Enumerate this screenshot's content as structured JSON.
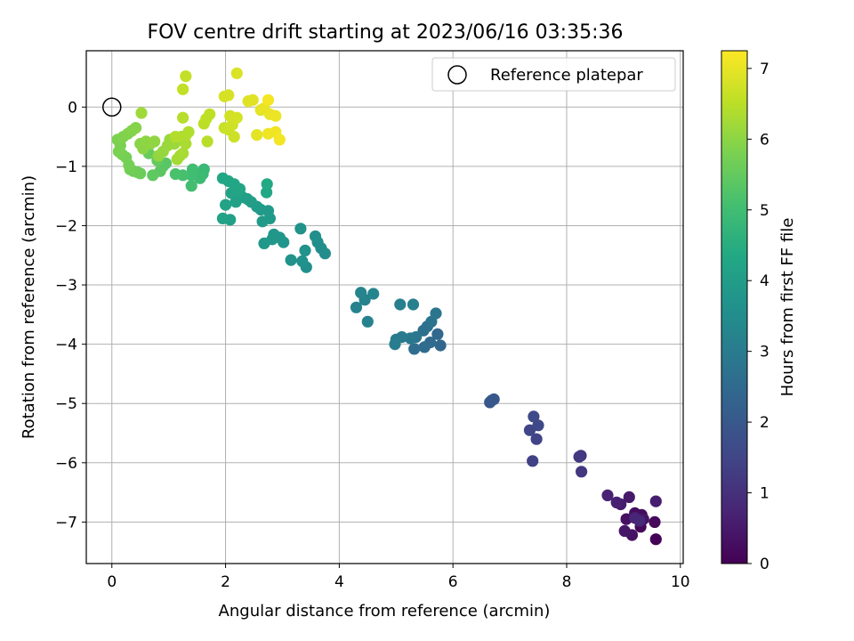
{
  "chart_data": {
    "type": "scatter",
    "title": "FOV centre drift starting at 2023/06/16 03:35:36",
    "xlabel": "Angular distance from reference (arcmin)",
    "ylabel": "Rotation from reference (arcmin)",
    "xlim": [
      -0.45,
      10.05
    ],
    "ylim": [
      -7.7,
      0.95
    ],
    "xticks": [
      0,
      2,
      4,
      6,
      8,
      10
    ],
    "xtick_labels": [
      "0",
      "2",
      "4",
      "6",
      "8",
      "10"
    ],
    "yticks": [
      0,
      -1,
      -2,
      -3,
      -4,
      -5,
      -6,
      -7
    ],
    "ytick_labels": [
      "0",
      "−1",
      "−2",
      "−3",
      "−4",
      "−5",
      "−6",
      "−7"
    ],
    "grid": true,
    "legend": {
      "position": "top-right",
      "entries": [
        "Reference platepar"
      ]
    },
    "reference_marker": {
      "x": 0,
      "y": 0
    },
    "colorbar": {
      "label": "Hours from first FF file",
      "colormap": "viridis",
      "min": 0,
      "max": 7.25,
      "ticks": [
        0,
        1,
        2,
        3,
        4,
        5,
        6,
        7
      ],
      "tick_labels": [
        "0",
        "1",
        "2",
        "3",
        "4",
        "5",
        "6",
        "7"
      ]
    },
    "points_columns": [
      "x_arcmin",
      "y_arcmin",
      "hours"
    ],
    "points": [
      [
        9.57,
        -7.29,
        0.05
      ],
      [
        9.3,
        -7.08,
        0.1
      ],
      [
        9.55,
        -7.0,
        0.15
      ],
      [
        9.32,
        -6.88,
        0.2
      ],
      [
        9.2,
        -6.85,
        0.25
      ],
      [
        9.05,
        -6.95,
        0.3
      ],
      [
        9.15,
        -7.22,
        0.35
      ],
      [
        9.35,
        -6.95,
        0.4
      ],
      [
        9.02,
        -7.15,
        0.45
      ],
      [
        9.1,
        -6.58,
        0.5
      ],
      [
        8.95,
        -6.7,
        0.55
      ],
      [
        9.57,
        -6.65,
        0.6
      ],
      [
        8.88,
        -6.67,
        0.65
      ],
      [
        8.72,
        -6.55,
        0.7
      ],
      [
        9.2,
        -6.93,
        0.75
      ],
      [
        9.28,
        -6.98,
        0.8
      ],
      [
        8.25,
        -5.88,
        1.1
      ],
      [
        8.26,
        -6.15,
        1.15
      ],
      [
        8.22,
        -5.9,
        1.2
      ],
      [
        7.4,
        -5.97,
        1.4
      ],
      [
        7.47,
        -5.6,
        1.45
      ],
      [
        7.35,
        -5.45,
        1.5
      ],
      [
        7.5,
        -5.37,
        1.55
      ],
      [
        7.42,
        -5.22,
        1.6
      ],
      [
        6.65,
        -4.98,
        1.9
      ],
      [
        6.72,
        -4.93,
        1.95
      ],
      [
        6.68,
        -4.95,
        2.0
      ],
      [
        5.78,
        -4.02,
        2.4
      ],
      [
        5.73,
        -3.83,
        2.45
      ],
      [
        5.6,
        -3.97,
        2.5
      ],
      [
        5.5,
        -4.05,
        2.55
      ],
      [
        5.32,
        -4.08,
        2.6
      ],
      [
        5.48,
        -3.77,
        2.65
      ],
      [
        5.55,
        -3.7,
        2.7
      ],
      [
        5.62,
        -3.62,
        2.75
      ],
      [
        5.7,
        -3.48,
        2.8
      ],
      [
        5.35,
        -3.88,
        2.85
      ],
      [
        5.25,
        -3.9,
        2.9
      ],
      [
        5.1,
        -3.88,
        2.95
      ],
      [
        5.0,
        -3.92,
        3.0
      ],
      [
        4.98,
        -4.0,
        3.05
      ],
      [
        5.07,
        -3.33,
        3.1
      ],
      [
        5.3,
        -3.33,
        3.12
      ],
      [
        4.5,
        -3.62,
        3.18
      ],
      [
        4.45,
        -3.25,
        3.2
      ],
      [
        4.3,
        -3.38,
        3.22
      ],
      [
        4.38,
        -3.13,
        3.25
      ],
      [
        4.6,
        -3.15,
        3.28
      ],
      [
        3.75,
        -2.47,
        3.5
      ],
      [
        3.68,
        -2.38,
        3.52
      ],
      [
        3.62,
        -2.28,
        3.55
      ],
      [
        3.58,
        -2.18,
        3.58
      ],
      [
        3.42,
        -2.7,
        3.6
      ],
      [
        3.35,
        -2.6,
        3.62
      ],
      [
        3.4,
        -2.42,
        3.65
      ],
      [
        3.32,
        -2.05,
        3.68
      ],
      [
        3.15,
        -2.58,
        3.7
      ],
      [
        3.02,
        -2.28,
        3.75
      ],
      [
        2.95,
        -2.2,
        3.78
      ],
      [
        2.82,
        -2.23,
        3.8
      ],
      [
        2.85,
        -2.15,
        3.82
      ],
      [
        2.68,
        -2.3,
        3.85
      ],
      [
        2.78,
        -1.88,
        3.88
      ],
      [
        2.75,
        -1.75,
        3.9
      ],
      [
        2.62,
        -1.73,
        3.92
      ],
      [
        2.65,
        -1.93,
        3.95
      ],
      [
        2.55,
        -1.68,
        3.98
      ],
      [
        2.45,
        -1.6,
        4.0
      ],
      [
        2.38,
        -1.55,
        4.05
      ],
      [
        2.3,
        -1.52,
        4.08
      ],
      [
        2.08,
        -1.9,
        4.1
      ],
      [
        2.18,
        -1.6,
        4.12
      ],
      [
        1.95,
        -1.88,
        4.15
      ],
      [
        2.0,
        -1.65,
        4.18
      ],
      [
        2.1,
        -1.45,
        4.2
      ],
      [
        2.2,
        -1.42,
        4.22
      ],
      [
        2.25,
        -1.38,
        4.25
      ],
      [
        2.15,
        -1.3,
        4.28
      ],
      [
        2.05,
        -1.25,
        4.3
      ],
      [
        1.95,
        -1.2,
        4.32
      ],
      [
        2.72,
        -1.44,
        4.35
      ],
      [
        2.73,
        -1.3,
        4.38
      ],
      [
        1.62,
        -1.05,
        4.85
      ],
      [
        1.6,
        -1.13,
        4.9
      ],
      [
        1.55,
        -1.2,
        4.95
      ],
      [
        1.4,
        -1.15,
        5.0
      ],
      [
        1.42,
        -1.05,
        5.02
      ],
      [
        1.4,
        -1.33,
        5.05
      ],
      [
        1.25,
        -1.15,
        5.1
      ],
      [
        1.12,
        -1.13,
        5.15
      ],
      [
        0.9,
        -1.0,
        5.3
      ],
      [
        0.95,
        -0.95,
        5.35
      ],
      [
        0.85,
        -1.08,
        5.4
      ],
      [
        0.72,
        -1.15,
        5.45
      ],
      [
        0.8,
        -0.9,
        5.5
      ],
      [
        0.65,
        -0.78,
        5.55
      ],
      [
        0.5,
        -1.12,
        5.6
      ],
      [
        0.45,
        -1.1,
        5.62
      ],
      [
        0.38,
        -1.08,
        5.65
      ],
      [
        0.32,
        -1.05,
        5.68
      ],
      [
        0.3,
        -0.98,
        5.7
      ],
      [
        0.25,
        -0.85,
        5.72
      ],
      [
        0.18,
        -0.8,
        5.75
      ],
      [
        0.12,
        -0.75,
        5.78
      ],
      [
        0.15,
        -0.65,
        5.8
      ],
      [
        0.1,
        -0.55,
        5.82
      ],
      [
        0.2,
        -0.5,
        5.85
      ],
      [
        0.28,
        -0.45,
        5.88
      ],
      [
        0.35,
        -0.4,
        5.9
      ],
      [
        0.42,
        -0.35,
        5.92
      ],
      [
        0.5,
        -0.62,
        5.95
      ],
      [
        0.55,
        -0.7,
        5.98
      ],
      [
        0.6,
        -0.58,
        6.0
      ],
      [
        0.68,
        -0.62,
        6.02
      ],
      [
        0.75,
        -0.58,
        6.05
      ],
      [
        0.82,
        -0.82,
        6.08
      ],
      [
        0.9,
        -0.75,
        6.1
      ],
      [
        0.98,
        -0.65,
        6.12
      ],
      [
        1.02,
        -0.55,
        6.15
      ],
      [
        1.1,
        -0.62,
        6.18
      ],
      [
        0.52,
        -0.1,
        6.2
      ],
      [
        1.15,
        -0.88,
        6.25
      ],
      [
        1.2,
        -0.82,
        6.28
      ],
      [
        1.25,
        -0.78,
        6.3
      ],
      [
        1.3,
        -0.62,
        6.32
      ],
      [
        1.22,
        -0.5,
        6.35
      ],
      [
        1.3,
        -0.48,
        6.38
      ],
      [
        1.35,
        -0.42,
        6.4
      ],
      [
        1.12,
        -0.5,
        6.42
      ],
      [
        1.25,
        -0.18,
        6.45
      ],
      [
        1.68,
        -0.58,
        6.48
      ],
      [
        1.62,
        -0.28,
        6.5
      ],
      [
        1.66,
        -0.2,
        6.52
      ],
      [
        1.72,
        -0.12,
        6.55
      ],
      [
        1.25,
        0.3,
        6.58
      ],
      [
        1.3,
        0.52,
        6.6
      ],
      [
        1.98,
        -0.35,
        6.65
      ],
      [
        2.05,
        -0.38,
        6.68
      ],
      [
        2.15,
        -0.5,
        6.7
      ],
      [
        2.12,
        -0.3,
        6.72
      ],
      [
        2.08,
        -0.15,
        6.75
      ],
      [
        2.2,
        -0.18,
        6.78
      ],
      [
        1.98,
        0.18,
        6.8
      ],
      [
        2.05,
        0.2,
        6.82
      ],
      [
        2.2,
        0.57,
        6.85
      ],
      [
        2.4,
        0.1,
        6.9
      ],
      [
        2.48,
        0.12,
        6.92
      ],
      [
        2.55,
        -0.47,
        6.95
      ],
      [
        2.62,
        -0.05,
        6.98
      ],
      [
        2.68,
        -0.02,
        7.0
      ],
      [
        2.78,
        -0.12,
        7.02
      ],
      [
        2.88,
        -0.15,
        7.05
      ],
      [
        2.75,
        -0.45,
        7.08
      ],
      [
        2.88,
        -0.42,
        7.1
      ],
      [
        2.95,
        -0.55,
        7.12
      ],
      [
        2.75,
        0.12,
        7.15
      ]
    ]
  }
}
